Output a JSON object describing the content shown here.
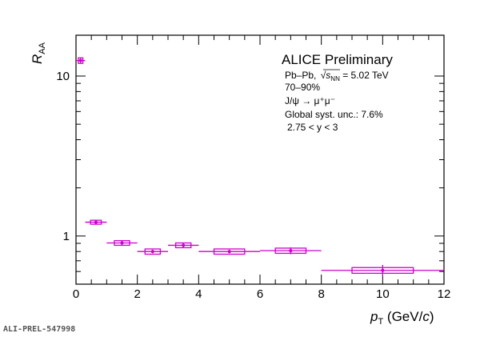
{
  "chart_data": {
    "type": "scatter",
    "title": "ALICE Preliminary",
    "xlabel": "p_T (GeV/c)",
    "ylabel": "R_AA",
    "xlim": [
      0,
      12
    ],
    "ylim": [
      0.5,
      18
    ],
    "yscale": "log",
    "grid": false,
    "x_ticks": [
      0,
      2,
      4,
      6,
      8,
      10,
      12
    ],
    "y_ticks": [
      1,
      10
    ],
    "marker_color": "#cc00cc",
    "points": [
      {
        "x": 0.15,
        "xlo": 0.0,
        "xhi": 0.3,
        "y": 12.5,
        "stat": 0.4,
        "syst": 0.5
      },
      {
        "x": 0.65,
        "xlo": 0.3,
        "xhi": 1.0,
        "y": 1.22,
        "stat": 0.03,
        "syst": 0.035
      },
      {
        "x": 1.5,
        "xlo": 1.0,
        "xhi": 2.0,
        "y": 0.905,
        "stat": 0.025,
        "syst": 0.03
      },
      {
        "x": 2.5,
        "xlo": 2.0,
        "xhi": 3.0,
        "y": 0.8,
        "stat": 0.02,
        "syst": 0.03
      },
      {
        "x": 3.5,
        "xlo": 3.0,
        "xhi": 4.0,
        "y": 0.875,
        "stat": 0.035,
        "syst": 0.03
      },
      {
        "x": 5.0,
        "xlo": 4.0,
        "xhi": 6.0,
        "y": 0.8,
        "stat": 0.02,
        "syst": 0.03
      },
      {
        "x": 7.0,
        "xlo": 6.0,
        "xhi": 8.0,
        "y": 0.81,
        "stat": 0.04,
        "syst": 0.03
      },
      {
        "x": 10.0,
        "xlo": 8.0,
        "xhi": 12.0,
        "y": 0.61,
        "stat": 0.05,
        "syst": 0.025
      }
    ]
  },
  "legend": {
    "title": "ALICE Preliminary",
    "lines": [
      "70–90%",
      "J/ψ → μ⁺μ⁻",
      "Global syst. unc.: 7.6%"
    ],
    "system_prefix": "Pb–Pb, ",
    "sqrt_s": "s",
    "sqrt_s_sub": "NN",
    "energy": " = 5.02 TeV",
    "rapidity": "2.75 < y < 3"
  },
  "axis_titles": {
    "x_main": "p",
    "x_sub": "T",
    "x_rest": "  (GeV/",
    "x_c": "c",
    "x_close": ")",
    "y_main": "R",
    "y_sub": "AA"
  },
  "watermark": "ALI-PREL-547998"
}
